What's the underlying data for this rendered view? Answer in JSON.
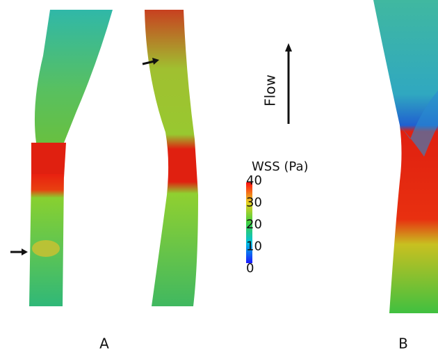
{
  "flow_label": "Flow",
  "colorbar": {
    "title": "WSS (Pa)",
    "ticks": [
      0,
      10,
      20,
      30,
      40
    ]
  },
  "panels": [
    {
      "label": "A"
    },
    {
      "label": "B"
    }
  ]
}
